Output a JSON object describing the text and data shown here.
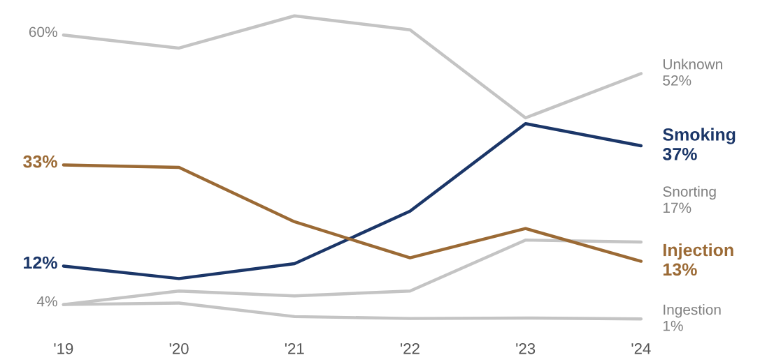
{
  "chart_data": {
    "type": "line",
    "categories": [
      "'19",
      "'20",
      "'21",
      "'22",
      "'23",
      "'24"
    ],
    "series": [
      {
        "name": "Unknown",
        "color": "#c4c4c4",
        "values": [
          60,
          57.3,
          64,
          61.1,
          42.8,
          52
        ],
        "value_labels": [
          "60%",
          null,
          null,
          null,
          null,
          "52%"
        ]
      },
      {
        "name": "Smoking",
        "color": "#1b3668",
        "values": [
          12,
          9.4,
          12.5,
          23.4,
          41.6,
          37
        ],
        "value_labels": [
          "12%",
          null,
          null,
          null,
          null,
          "37%"
        ]
      },
      {
        "name": "Snorting",
        "color": "#c4c4c4",
        "values": [
          4,
          6.8,
          5.8,
          6.8,
          17.4,
          17
        ],
        "value_labels": [
          null,
          null,
          null,
          null,
          null,
          "17%"
        ]
      },
      {
        "name": "Injection",
        "color": "#9b6a35",
        "values": [
          33,
          32.5,
          21.2,
          13.7,
          19.8,
          13
        ],
        "value_labels": [
          "33%",
          null,
          null,
          null,
          null,
          "13%"
        ]
      },
      {
        "name": "Ingestion",
        "color": "#c4c4c4",
        "values": [
          4,
          4.3,
          1.5,
          1.1,
          1.2,
          1
        ],
        "value_labels": [
          "4%",
          null,
          null,
          null,
          null,
          "1%"
        ]
      }
    ]
  }
}
